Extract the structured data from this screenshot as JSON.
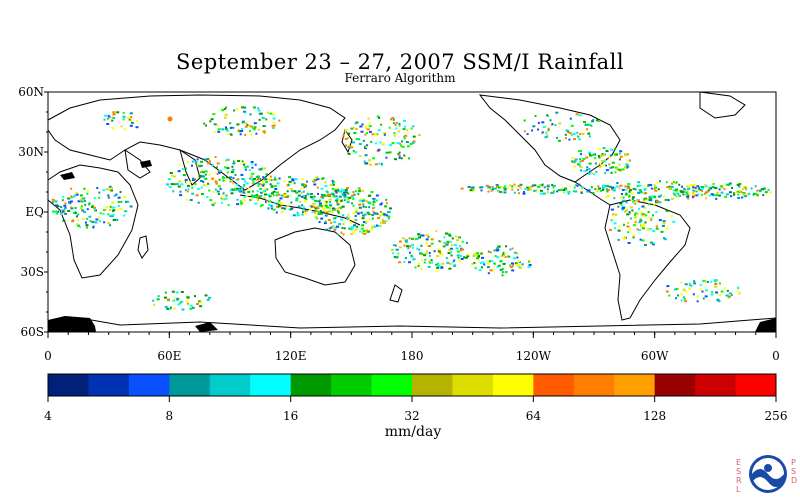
{
  "title": "September 23 – 27, 2007 SSM/I Rainfall",
  "subtitle": "Ferraro Algorithm",
  "map": {
    "lat_labels": [
      "60N",
      "30N",
      "EQ",
      "30S",
      "60S"
    ],
    "lon_labels": [
      "0",
      "60E",
      "120E",
      "180",
      "120W",
      "60W",
      "0"
    ],
    "lat_range": [
      -60,
      60
    ],
    "lon_range": [
      0,
      360
    ]
  },
  "colorbar": {
    "colors": [
      "#00207a",
      "#0032b4",
      "#0a50ff",
      "#009999",
      "#00cccc",
      "#00ffff",
      "#009900",
      "#00cc00",
      "#00ff00",
      "#b4b400",
      "#dddd00",
      "#ffff00",
      "#ff5a00",
      "#ff7e00",
      "#ffa000",
      "#990000",
      "#cc0000",
      "#ff0000"
    ],
    "tick_labels": [
      "4",
      "8",
      "16",
      "32",
      "64",
      "128",
      "256"
    ],
    "units": "mm/day"
  },
  "logo": {
    "left_text": "ESRL",
    "right_text": "PSD",
    "center": "NOAA"
  }
}
